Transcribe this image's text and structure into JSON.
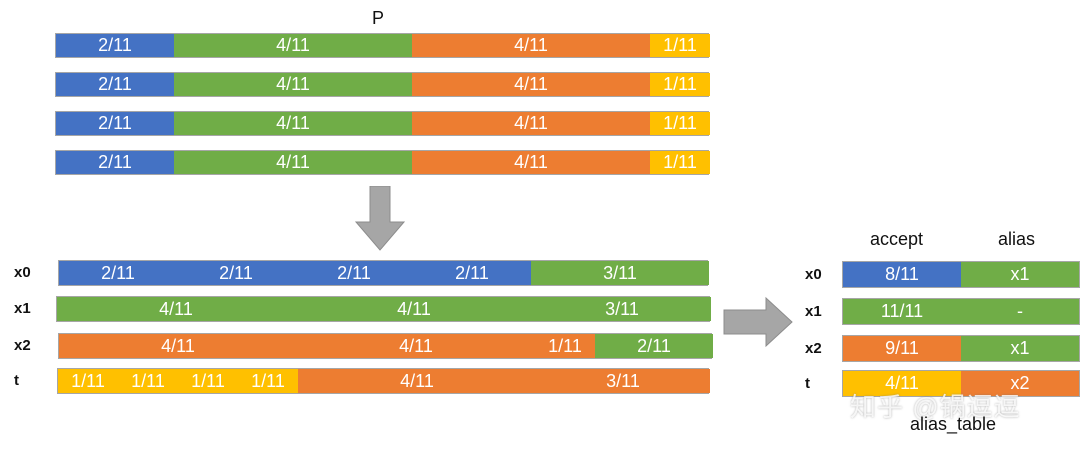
{
  "colors": {
    "blue": "#4472C4",
    "green": "#70AD47",
    "orange": "#ED7D31",
    "yellow": "#FFC000",
    "arrow": "#a6a6a6"
  },
  "top": {
    "title": "P",
    "rows": [
      [
        {
          "label": "2/11",
          "color": "blue"
        },
        {
          "label": "4/11",
          "color": "green"
        },
        {
          "label": "4/11",
          "color": "orange"
        },
        {
          "label": "1/11",
          "color": "yellow"
        }
      ],
      [
        {
          "label": "2/11",
          "color": "blue"
        },
        {
          "label": "4/11",
          "color": "green"
        },
        {
          "label": "4/11",
          "color": "orange"
        },
        {
          "label": "1/11",
          "color": "yellow"
        }
      ],
      [
        {
          "label": "2/11",
          "color": "blue"
        },
        {
          "label": "4/11",
          "color": "green"
        },
        {
          "label": "4/11",
          "color": "orange"
        },
        {
          "label": "1/11",
          "color": "yellow"
        }
      ],
      [
        {
          "label": "2/11",
          "color": "blue"
        },
        {
          "label": "4/11",
          "color": "green"
        },
        {
          "label": "4/11",
          "color": "orange"
        },
        {
          "label": "1/11",
          "color": "yellow"
        }
      ]
    ]
  },
  "middle": {
    "rows": [
      {
        "name": "x0",
        "segments": [
          {
            "label": "2/11",
            "color": "blue"
          },
          {
            "label": "2/11",
            "color": "blue"
          },
          {
            "label": "2/11",
            "color": "blue"
          },
          {
            "label": "2/11",
            "color": "blue"
          },
          {
            "label": "3/11",
            "color": "green"
          }
        ]
      },
      {
        "name": "x1",
        "segments": [
          {
            "label": "4/11",
            "color": "green"
          },
          {
            "label": "4/11",
            "color": "green"
          },
          {
            "label": "3/11",
            "color": "green"
          }
        ]
      },
      {
        "name": "x2",
        "segments": [
          {
            "label": "4/11",
            "color": "orange"
          },
          {
            "label": "4/11",
            "color": "orange"
          },
          {
            "label": "1/11",
            "color": "orange"
          },
          {
            "label": "2/11",
            "color": "green"
          }
        ]
      },
      {
        "name": "t",
        "segments": [
          {
            "label": "1/11",
            "color": "yellow"
          },
          {
            "label": "1/11",
            "color": "yellow"
          },
          {
            "label": "1/11",
            "color": "yellow"
          },
          {
            "label": "1/11",
            "color": "yellow"
          },
          {
            "label": "4/11",
            "color": "orange"
          },
          {
            "label": "3/11",
            "color": "orange"
          }
        ]
      }
    ]
  },
  "alias_table": {
    "accept_header": "accept",
    "alias_header": "alias",
    "name": "alias_table",
    "rows": [
      {
        "name": "x0",
        "accept": {
          "label": "8/11",
          "color": "blue"
        },
        "alias": {
          "label": "x1",
          "color": "green"
        }
      },
      {
        "name": "x1",
        "accept": {
          "label": "11/11",
          "color": "green"
        },
        "alias": {
          "label": "-",
          "color": "green"
        }
      },
      {
        "name": "x2",
        "accept": {
          "label": "9/11",
          "color": "orange"
        },
        "alias": {
          "label": "x1",
          "color": "green"
        }
      },
      {
        "name": "t",
        "accept": {
          "label": "4/11",
          "color": "yellow"
        },
        "alias": {
          "label": "x2",
          "color": "orange"
        }
      }
    ]
  },
  "watermark": "知乎 @锅逗逗"
}
